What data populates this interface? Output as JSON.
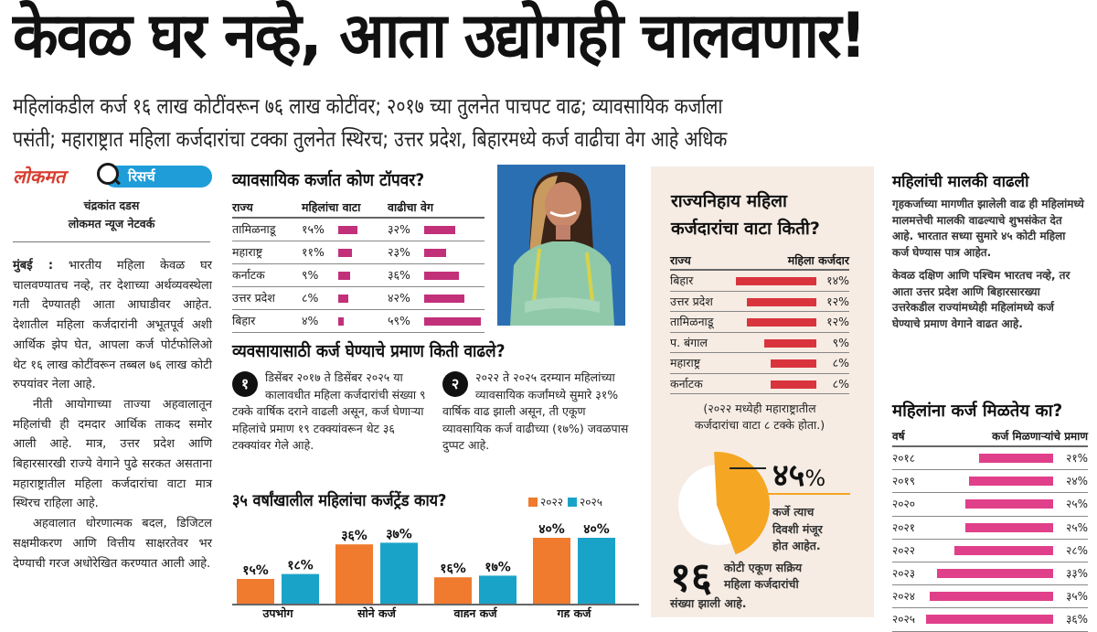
{
  "headline": "केवळ घर नव्हे, आता उद्योगही चालवणार!",
  "subheadline": {
    "line1": "महिलांकडील कर्ज १६ लाख कोटींवरून ७६ लाख कोटींवर; २०१७ च्या तुलनेत पाचपट वाढ;  व्यावसायिक कर्जाला",
    "line2": "पसंती; महाराष्ट्रात महिला कर्जदारांचा टक्का तुलनेत स्थिरच; उत्तर प्रदेश, बिहारमध्ये कर्ज वाढीचा वेग आहे अधिक"
  },
  "brand": {
    "name": "लोकमत",
    "section": "रिसर्च",
    "colors": {
      "red": "#d63c2e",
      "blue": "#1f9dd9"
    }
  },
  "byline": {
    "author": "चंद्रकांत दडस",
    "org": "लोकमत न्यूज नेटवर्क"
  },
  "article": {
    "dateline": "मुंबई :",
    "p1": "भारतीय महिला केवळ घर चालवण्यातच नव्हे, तर देशाच्या अर्थव्यवस्थेला गती देण्यातही आता आघाडीवर आहेत. देशातील महिला कर्जदारांनी अभूतपूर्व अशी आर्थिक झेप घेत, आपला कर्ज पोर्टफोलिओ थेट १६ लाख कोटींवरून तब्बल ७६ लाख कोटी रुपयांवर नेला आहे.",
    "p2": "नीती आयोगाच्या ताज्या अहवालातून महिलांची ही दमदार आर्थिक ताकद समोर आली आहे. मात्र, उत्तर प्रदेश आणि बिहारसारखी राज्ये वेगाने पुढे सरकत असताना महाराष्ट्रातील महिला कर्जदारांचा वाटा मात्र स्थिरच राहिला आहे.",
    "p3": "अहवालात धोरणात्मक बदल, डिजिटल सक्षमीकरण आणि वित्तीय साक्षरतेवर भर देण्याची गरज अधोरेखित करण्यात आली आहे."
  },
  "business_table": {
    "title": "व्यावसायिक कर्जात कोण टॉपवर?",
    "headers": [
      "राज्य",
      "महिलांचा वाटा",
      "वाढीचा वेग"
    ],
    "rows": [
      {
        "state": "तामिळनाडू",
        "share_label": "१५%",
        "share": 15,
        "growth_label": "३२%",
        "growth": 32
      },
      {
        "state": "महाराष्ट्र",
        "share_label": "११%",
        "share": 11,
        "growth_label": "२३%",
        "growth": 23
      },
      {
        "state": "कर्नाटक",
        "share_label": "९%",
        "share": 9,
        "growth_label": "३६%",
        "growth": 36
      },
      {
        "state": "उत्तर प्रदेश",
        "share_label": "८%",
        "share": 8,
        "growth_label": "४२%",
        "growth": 42
      },
      {
        "state": "बिहार",
        "share_label": "४%",
        "share": 4,
        "growth_label": "५९%",
        "growth": 59
      }
    ],
    "bar_color": "#c2307a"
  },
  "increase": {
    "title": "व्यवसायासाठी कर्ज घेण्याचे प्रमाण किती वाढले?",
    "points": [
      {
        "num": "१",
        "text": "डिसेंबर २०१७ ते डिसेंबर २०२५ या कालावधीत महिला कर्जदारांची संख्या ९ टक्के वार्षिक दराने वाढली असून, कर्ज घेणाऱ्या महिलांचे प्रमाण १९ टक्क्यांवरून थेट ३६ टक्क्यांवर गेले आहे."
      },
      {
        "num": "२",
        "text": "२०२२ ते २०२५ दरम्यान महिलांच्या व्यावसायिक कर्जांमध्ये सुमारे ३१% वार्षिक वाढ झाली असून, ती एकूण व्यावसायिक कर्ज वाढीच्या (१७%) जवळपास दुप्पट आहे."
      }
    ]
  },
  "chart_data": {
    "type": "bar",
    "title": "३५ वर्षांखालील महिलांचा कर्जट्रेंड काय?",
    "categories": [
      "उपभोग",
      "सोने कर्ज",
      "वाहन कर्ज",
      "गृह कर्ज"
    ],
    "series": [
      {
        "name": "२०२२",
        "color": "#f07a2e",
        "values": [
          15,
          36,
          16,
          40
        ],
        "labels": [
          "१५%",
          "३६%",
          "१६%",
          "४०%"
        ]
      },
      {
        "name": "२०२५",
        "color": "#1aa3c8",
        "values": [
          18,
          37,
          17,
          40
        ],
        "labels": [
          "१८%",
          "३७%",
          "१७%",
          "४०%"
        ]
      }
    ],
    "ylim": [
      0,
      40
    ],
    "legend": "top-right",
    "grid": false
  },
  "state_share": {
    "title_line1": "राज्यनिहाय महिला",
    "title_line2": "कर्जदारांचा वाटा किती?",
    "headers": [
      "राज्य",
      "महिला कर्जदार"
    ],
    "rows": [
      {
        "state": "बिहार",
        "label": "१४%",
        "value": 14
      },
      {
        "state": "उत्तर प्रदेश",
        "label": "१२%",
        "value": 12
      },
      {
        "state": "तामिळनाडू",
        "label": "१२%",
        "value": 12
      },
      {
        "state": "प. बंगाल",
        "label": "९%",
        "value": 9
      },
      {
        "state": "महाराष्ट्र",
        "label": "८%",
        "value": 8
      },
      {
        "state": "कर्नाटक",
        "label": "८%",
        "value": 8
      }
    ],
    "note_line1": "(२०२२ मध्येही महाराष्ट्रातील",
    "note_line2": "कर्जदारांचा वाटा ८ टक्के होता.)",
    "bar_color": "#d9343e",
    "panel_bg": "#f6ece4"
  },
  "same_day": {
    "value": 45,
    "label": "४५",
    "unit": "%",
    "caption_line1": "कर्जे त्याच",
    "caption_line2": "दिवशी मंजूर",
    "caption_line3": "होत आहेत.",
    "color": "#f5a623"
  },
  "active_borrowers": {
    "number": "१६",
    "caption_line1": "कोटी एकूण सक्रिय",
    "caption_line2": "महिला कर्जदारांची",
    "caption_line3": "संख्या झाली आहे."
  },
  "ownership": {
    "title": "महिलांची मालकी वाढली",
    "p1": "गृहकर्जाच्या मागणीत झालेली वाढ ही महिलांमध्ये मालमत्तेची मालकी वाढल्याचे शुभसंकेत देत आहे. भारतात सध्या सुमारे ४५ कोटी महिला कर्ज घेण्यास पात्र आहेत.",
    "p2": "केवळ दक्षिण आणि पश्चिम भारतच नव्हे, तर आता उत्तर प्रदेश आणि बिहारसारख्या उत्तरेकडील राज्यांमध्येही महिलांमध्ये कर्ज घेण्याचे प्रमाण वेगाने वाढत आहे."
  },
  "loan_access": {
    "title": "महिलांना कर्ज मिळतेय का?",
    "headers": [
      "वर्ष",
      "कर्ज मिळणाऱ्यांचे प्रमाण"
    ],
    "rows": [
      {
        "year": "२०१८",
        "label": "२१%",
        "value": 21
      },
      {
        "year": "२०१९",
        "label": "२४%",
        "value": 24
      },
      {
        "year": "२०२०",
        "label": "२५%",
        "value": 25
      },
      {
        "year": "२०२१",
        "label": "२५%",
        "value": 25
      },
      {
        "year": "२०२२",
        "label": "२८%",
        "value": 28
      },
      {
        "year": "२०२३",
        "label": "३३%",
        "value": 33
      },
      {
        "year": "२०२४",
        "label": "३५%",
        "value": 35
      },
      {
        "year": "२०२५",
        "label": "३६%",
        "value": 36
      }
    ],
    "bar_color": "#e0408a"
  }
}
